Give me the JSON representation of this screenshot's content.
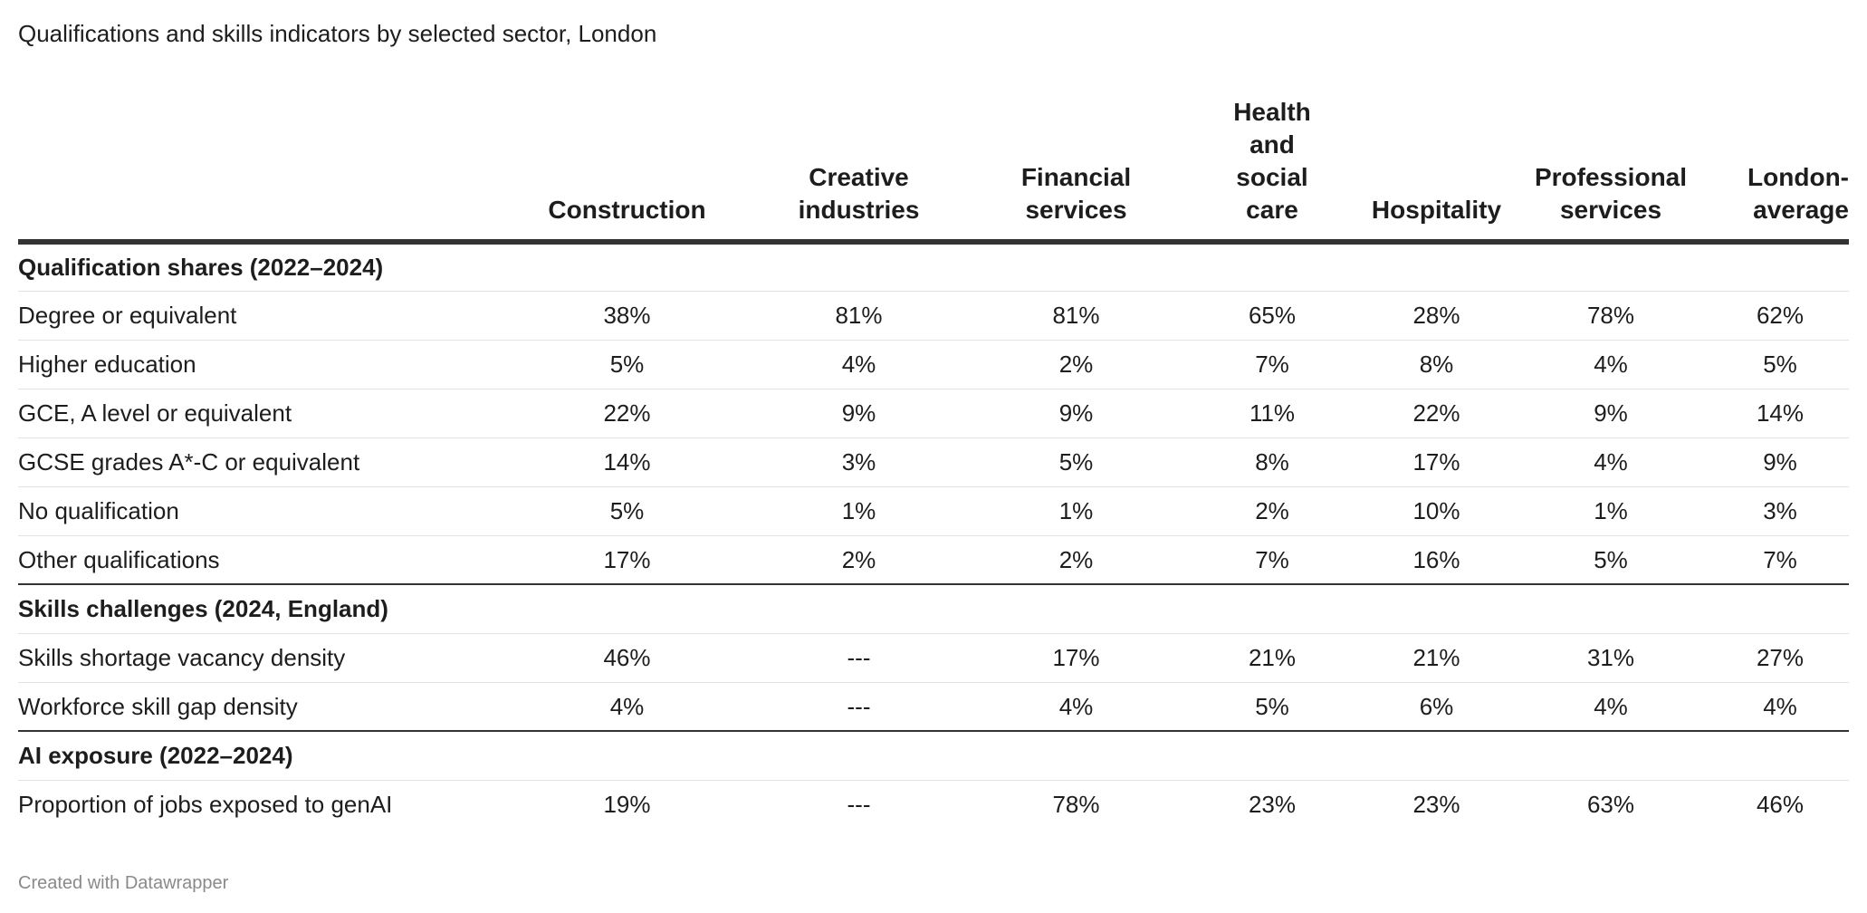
{
  "chart_data": {
    "type": "table",
    "title": "Qualifications and skills indicators by selected sector, London",
    "columns": [
      "Construction",
      "Creative\nindustries",
      "Financial\nservices",
      "Health\nand\nsocial\ncare",
      "Hospitality",
      "Professional\nservices",
      "London-\naverage"
    ],
    "groups": [
      {
        "name": "Qualification shares (2022–2024)",
        "rows": [
          {
            "label": "Degree or equivalent",
            "values": [
              "38%",
              "81%",
              "81%",
              "65%",
              "28%",
              "78%",
              "62%"
            ]
          },
          {
            "label": "Higher education",
            "values": [
              "5%",
              "4%",
              "2%",
              "7%",
              "8%",
              "4%",
              "5%"
            ]
          },
          {
            "label": "GCE, A level or equivalent",
            "values": [
              "22%",
              "9%",
              "9%",
              "11%",
              "22%",
              "9%",
              "14%"
            ]
          },
          {
            "label": "GCSE grades A*-C or equivalent",
            "values": [
              "14%",
              "3%",
              "5%",
              "8%",
              "17%",
              "4%",
              "9%"
            ]
          },
          {
            "label": "No qualification",
            "values": [
              "5%",
              "1%",
              "1%",
              "2%",
              "10%",
              "1%",
              "3%"
            ]
          },
          {
            "label": "Other qualifications",
            "values": [
              "17%",
              "2%",
              "2%",
              "7%",
              "16%",
              "5%",
              "7%"
            ]
          }
        ]
      },
      {
        "name": "Skills challenges (2024, England)",
        "rows": [
          {
            "label": "Skills shortage vacancy density",
            "values": [
              "46%",
              "---",
              "17%",
              "21%",
              "21%",
              "31%",
              "27%"
            ]
          },
          {
            "label": "Workforce skill gap density",
            "values": [
              "4%",
              "---",
              "4%",
              "5%",
              "6%",
              "4%",
              "4%"
            ]
          }
        ]
      },
      {
        "name": "AI exposure (2022–2024)",
        "rows": [
          {
            "label": "Proportion of jobs exposed to genAI",
            "values": [
              "19%",
              "---",
              "78%",
              "23%",
              "23%",
              "63%",
              "46%"
            ]
          }
        ]
      }
    ]
  },
  "footer": "Created with Datawrapper"
}
